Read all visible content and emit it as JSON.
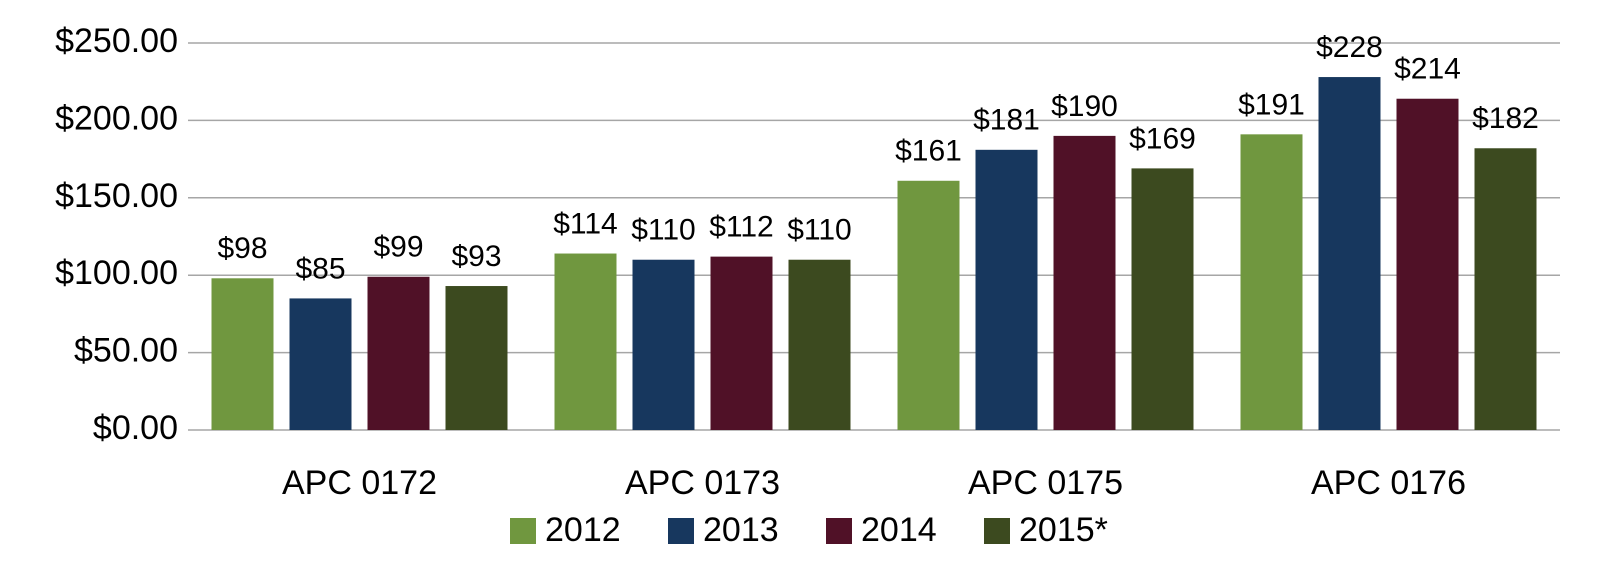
{
  "chart_data": {
    "type": "bar",
    "categories": [
      "APC 0172",
      "APC 0173",
      "APC 0175",
      "APC 0176"
    ],
    "series": [
      {
        "name": "2012",
        "color": "#70973f",
        "values": [
          98,
          114,
          161,
          191
        ],
        "value_labels": [
          "$98",
          "$114",
          "$161",
          "$191"
        ]
      },
      {
        "name": "2013",
        "color": "#17375e",
        "values": [
          85,
          110,
          181,
          228
        ],
        "value_labels": [
          "$85",
          "$110",
          "$181",
          "$228"
        ]
      },
      {
        "name": "2014",
        "color": "#501127",
        "values": [
          99,
          112,
          190,
          214
        ],
        "value_labels": [
          "$99",
          "$112",
          "$190",
          "$214"
        ]
      },
      {
        "name": "2015*",
        "color": "#3c4a1f",
        "values": [
          93,
          110,
          169,
          182
        ],
        "value_labels": [
          "$93",
          "$110",
          "$169",
          "$182"
        ]
      }
    ],
    "ylim": [
      0,
      250
    ],
    "yticks": [
      {
        "value": 0,
        "label": "$0.00"
      },
      {
        "value": 50,
        "label": "$50.00"
      },
      {
        "value": 100,
        "label": "$100.00"
      },
      {
        "value": 150,
        "label": "$150.00"
      },
      {
        "value": 200,
        "label": "$200.00"
      },
      {
        "value": 250,
        "label": "$250.00"
      }
    ],
    "grid": true,
    "legend": "bottom"
  }
}
